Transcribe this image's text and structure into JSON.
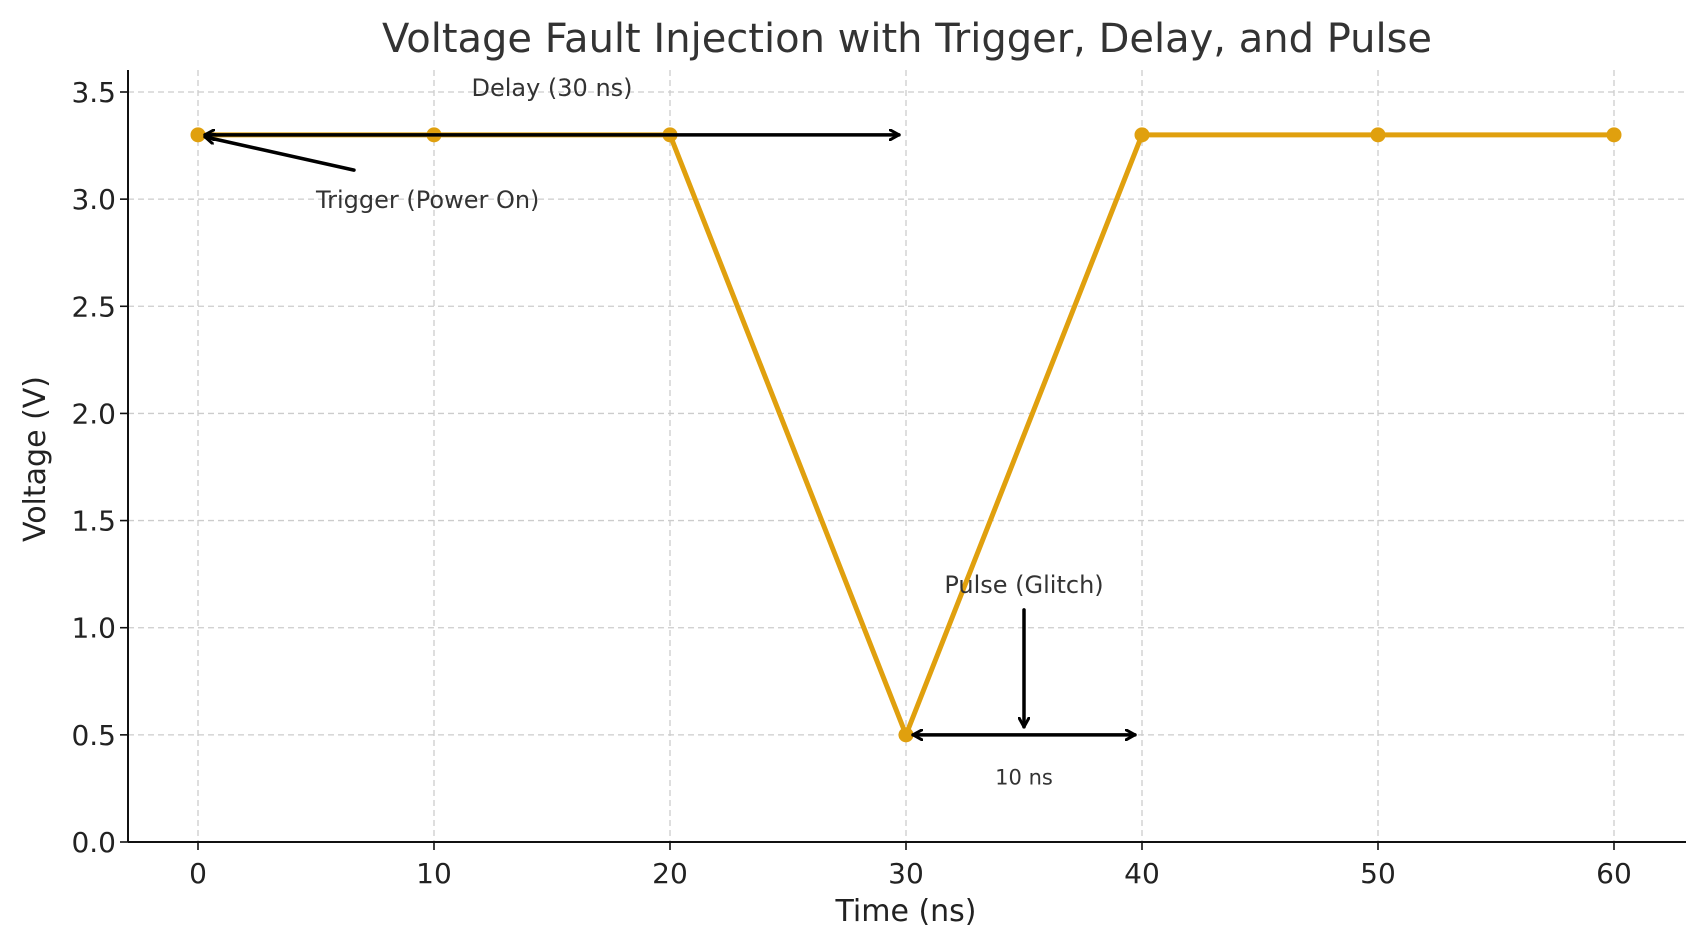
{
  "chart_data": {
    "type": "line",
    "title": "Voltage Fault Injection with Trigger, Delay, and Pulse",
    "xlabel": "Time (ns)",
    "ylabel": "Voltage (V)",
    "xlim": [
      -3,
      63
    ],
    "ylim": [
      0,
      3.6
    ],
    "x_ticks": [
      0,
      10,
      20,
      30,
      40,
      50,
      60
    ],
    "y_ticks": [
      0.0,
      0.5,
      1.0,
      1.5,
      2.0,
      2.5,
      3.0,
      3.5
    ],
    "y_tick_labels": [
      "0.0",
      "0.5",
      "1.0",
      "1.5",
      "2.0",
      "2.5",
      "3.0",
      "3.5"
    ],
    "grid": true,
    "series": [
      {
        "color": "#E0A00E",
        "x": [
          0,
          10,
          20,
          30,
          40,
          50,
          60
        ],
        "y": [
          3.3,
          3.3,
          3.3,
          0.5,
          3.3,
          3.3,
          3.3
        ]
      }
    ],
    "annotations": [
      {
        "id": "trigger",
        "text": "Trigger (Power On)",
        "point": [
          0,
          3.3
        ],
        "text_at": [
          5,
          3.0
        ]
      },
      {
        "id": "delay",
        "text": "Delay (30 ns)",
        "from": [
          0,
          3.3
        ],
        "to": [
          30,
          3.3
        ],
        "text_at": [
          15,
          3.5
        ]
      },
      {
        "id": "pulse",
        "text": "Pulse (Glitch)",
        "point": [
          35,
          0.5
        ],
        "text_at": [
          35,
          1.2
        ]
      },
      {
        "id": "width",
        "text": "10 ns",
        "from": [
          30,
          0.5
        ],
        "to": [
          40,
          0.5
        ],
        "text_at": [
          35,
          0.3
        ]
      }
    ]
  }
}
